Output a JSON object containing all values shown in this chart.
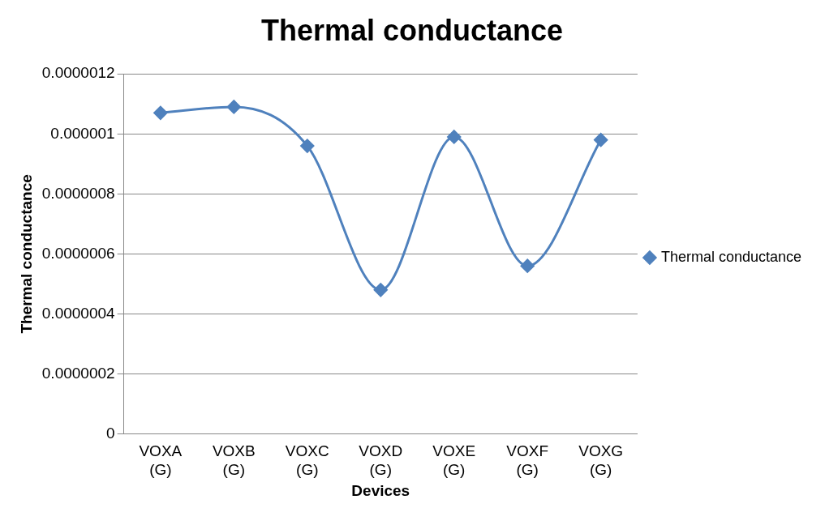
{
  "chart_data": {
    "type": "line",
    "title": "Thermal conductance",
    "xlabel": "Devices",
    "ylabel": "Thermal conductance",
    "categories": [
      "VOXA (G)",
      "VOXB (G)",
      "VOXC (G)",
      "VOXD (G)",
      "VOXE (G)",
      "VOXF (G)",
      "VOXG (G)"
    ],
    "series": [
      {
        "name": "Thermal conductance",
        "color": "#4f81bd",
        "values": [
          1.07e-06,
          1.09e-06,
          9.6e-07,
          4.8e-07,
          9.9e-07,
          5.6e-07,
          9.8e-07
        ]
      }
    ],
    "ylim": [
      0,
      1.2e-06
    ],
    "yticks": [
      {
        "value": 0,
        "label": "0"
      },
      {
        "value": 2e-07,
        "label": "0.0000002"
      },
      {
        "value": 4e-07,
        "label": "0.0000004"
      },
      {
        "value": 6e-07,
        "label": "0.0000006"
      },
      {
        "value": 8e-07,
        "label": "0.0000008"
      },
      {
        "value": 1e-06,
        "label": "0.000001"
      },
      {
        "value": 1.2e-06,
        "label": "0.0000012"
      }
    ],
    "grid": "y",
    "legend": "right",
    "marker": "diamond",
    "line_style": "solid"
  }
}
